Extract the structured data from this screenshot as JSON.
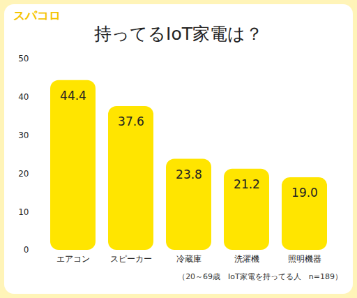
{
  "logo": "スパコロ",
  "chart_data": {
    "type": "bar",
    "title": "持ってるIoT家電は？",
    "caption": "（20～69歳　IoT家電を持ってる人　n=189）",
    "categories": [
      "エアコン",
      "スピーカー",
      "冷蔵庫",
      "洗濯機",
      "照明機器"
    ],
    "values": [
      44.4,
      37.6,
      23.8,
      21.2,
      19.0
    ],
    "value_labels": [
      "44.4",
      "37.6",
      "23.8",
      "21.2",
      "19.0"
    ],
    "color": "#ffe500",
    "ylim": [
      0,
      50
    ],
    "yticks": [
      0,
      10,
      20,
      30,
      40,
      50
    ],
    "grid": false,
    "data_labels": true
  }
}
